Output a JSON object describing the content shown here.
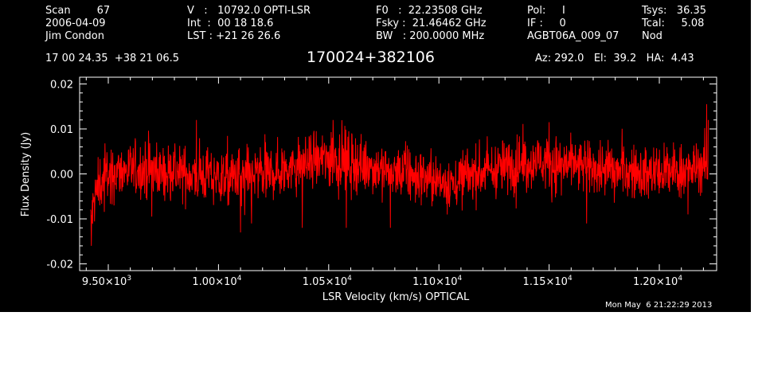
{
  "colors": {
    "background": "#000000",
    "foreground": "#ffffff",
    "trace": "#ff0000"
  },
  "header": {
    "scan": "Scan        67",
    "date": "2006-04-09",
    "observer": "Jim Condon",
    "velocity": "V   :   10792.0 OPTI-LSR",
    "integration": "Int  :  00 18 18.6",
    "lst": "LST : +21 26 26.6",
    "f0": "F0   :  22.23508 GHz",
    "fsky": "Fsky :  21.46462 GHz",
    "bw": "BW   : 200.0000 MHz",
    "pol": "Pol:     I",
    "if_line": "IF :     0",
    "project": "AGBT06A_009_07",
    "tsys": "Tsys:   36.35",
    "tcal": "Tcal:     5.08",
    "mode": "Nod",
    "coords": "17 00 24.35  +38 21 06.5",
    "source": "170024+382106",
    "azelha": "Az: 292.0   El:  39.2   HA:  4.43"
  },
  "timestamp": "Mon May  6 21:22:29 2013",
  "chart_data": {
    "type": "line",
    "xlabel": "LSR Velocity (km/s) OPTICAL",
    "ylabel": "Flux Density (Jy)",
    "xlim": [
      9370,
      12260
    ],
    "ylim": [
      -0.0215,
      0.0215
    ],
    "xticks": [
      {
        "value": 9500,
        "mant": "9.50×10",
        "exp": "3"
      },
      {
        "value": 10000,
        "mant": "1.00×10",
        "exp": "4"
      },
      {
        "value": 10500,
        "mant": "1.05×10",
        "exp": "4"
      },
      {
        "value": 11000,
        "mant": "1.10×10",
        "exp": "4"
      },
      {
        "value": 11500,
        "mant": "1.15×10",
        "exp": "4"
      },
      {
        "value": 12000,
        "mant": "1.20×10",
        "exp": "4"
      }
    ],
    "yticks": [
      {
        "value": 0.02,
        "label": "0.02"
      },
      {
        "value": 0.01,
        "label": "0.01"
      },
      {
        "value": 0.0,
        "label": "0.00"
      },
      {
        "value": -0.01,
        "label": "-0.01"
      },
      {
        "value": -0.02,
        "label": "-0.02"
      }
    ],
    "grid": false,
    "series": [
      {
        "baseline": {
          "x": [
            9420,
            9440,
            9470,
            9550,
            9650,
            9750,
            9850,
            9950,
            10050,
            10150,
            10250,
            10350,
            10450,
            10550,
            10650,
            10750,
            10850,
            10950,
            11050,
            11150,
            11250,
            11350,
            11450,
            11550,
            11650,
            11750,
            11850,
            11950,
            12050,
            12150,
            12200
          ],
          "y": [
            -0.011,
            -0.005,
            -0.001,
            0.0005,
            0.001,
            0.0005,
            0.0,
            -0.0005,
            -0.001,
            -0.0005,
            0.0005,
            0.0015,
            0.003,
            0.0035,
            0.002,
            0.001,
            0.0,
            -0.001,
            -0.002,
            0.0,
            0.001,
            0.002,
            0.003,
            0.002,
            0.0015,
            0.001,
            0.0005,
            0.0,
            0.0005,
            0.001,
            0.002
          ]
        },
        "noise_rms": 0.003,
        "spikes": [
          {
            "x": 9423,
            "y": -0.016
          },
          {
            "x": 9900,
            "y": 0.012
          },
          {
            "x": 10100,
            "y": -0.013
          },
          {
            "x": 10150,
            "y": -0.011
          },
          {
            "x": 10380,
            "y": -0.012
          },
          {
            "x": 10520,
            "y": 0.012
          },
          {
            "x": 10580,
            "y": -0.012
          },
          {
            "x": 10780,
            "y": -0.012
          },
          {
            "x": 11500,
            "y": 0.0115
          },
          {
            "x": 11670,
            "y": -0.011
          },
          {
            "x": 12130,
            "y": -0.009
          },
          {
            "x": 12215,
            "y": 0.0155
          },
          {
            "x": 12222,
            "y": 0.012
          }
        ]
      }
    ]
  }
}
